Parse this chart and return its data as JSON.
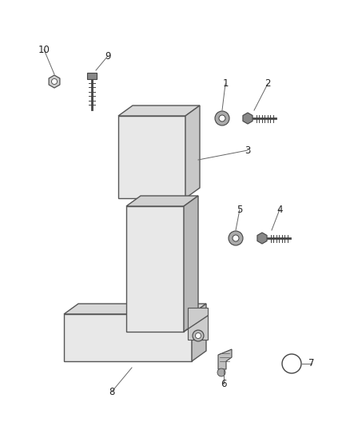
{
  "background_color": "#ffffff",
  "fig_width": 4.38,
  "fig_height": 5.33,
  "dpi": 100,
  "headrest": {
    "face_color": "#e8e8e8",
    "side_color": "#c8c8c8",
    "top_color": "#d8d8d8",
    "edge_color": "#555555"
  },
  "seatback": {
    "face_color": "#e8e8e8",
    "side_color": "#b8b8b8",
    "top_color": "#d0d0d0",
    "edge_color": "#555555"
  },
  "seat": {
    "face_color": "#e8e8e8",
    "side_color": "#c0c0c0",
    "top_color": "#d8d8d8",
    "edge_color": "#555555"
  },
  "bolt_color": "#888888",
  "bolt_edge": "#444444",
  "washer_color": "#aaaaaa",
  "washer_edge": "#444444",
  "label_fontsize": 8.5,
  "label_color": "#222222",
  "line_color": "#666666"
}
